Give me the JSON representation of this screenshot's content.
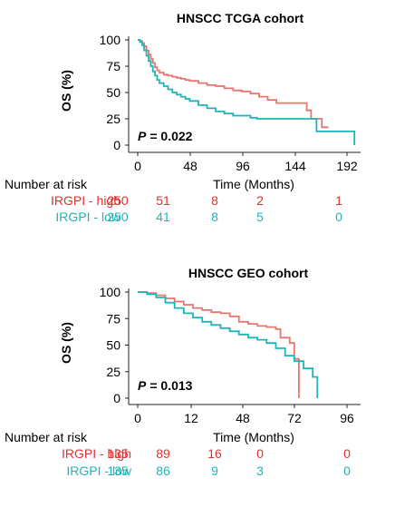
{
  "chart_data": [
    {
      "type": "line",
      "title": "HNSCC TCGA cohort",
      "ylabel": "OS (%)",
      "xlabel": "Time (Months)",
      "ylim": [
        0,
        100
      ],
      "xlim": [
        0,
        204
      ],
      "x_ticks": [
        "0",
        "48",
        "96",
        "144",
        "192"
      ],
      "y_ticks": [
        "100",
        "75",
        "50",
        "25",
        "0"
      ],
      "p_label": "P",
      "p_value": "= 0.022",
      "series": [
        {
          "name": "IRGPI - high",
          "color": "#e8766d",
          "x": [
            0,
            2,
            4,
            6,
            8,
            10,
            12,
            14,
            16,
            18,
            20,
            24,
            28,
            32,
            36,
            40,
            44,
            48,
            56,
            64,
            72,
            80,
            88,
            96,
            104,
            112,
            120,
            128,
            144,
            150,
            156,
            160,
            165,
            170,
            176
          ],
          "y": [
            100,
            99,
            97,
            94,
            90,
            86,
            82,
            78,
            74,
            71,
            69,
            67,
            66,
            65,
            64,
            63,
            62,
            61,
            59,
            57,
            56,
            54,
            52,
            51,
            49,
            46,
            43,
            40,
            40,
            40,
            33,
            25,
            25,
            17,
            17
          ]
        },
        {
          "name": "IRGPI - low",
          "color": "#1fb5b8",
          "x": [
            0,
            2,
            4,
            6,
            8,
            10,
            12,
            14,
            16,
            18,
            20,
            24,
            28,
            32,
            36,
            40,
            44,
            48,
            56,
            64,
            72,
            80,
            88,
            96,
            104,
            110,
            120,
            140,
            165,
            200,
            200
          ],
          "y": [
            100,
            98,
            95,
            90,
            85,
            80,
            75,
            70,
            66,
            62,
            59,
            56,
            53,
            50,
            48,
            46,
            44,
            42,
            38,
            35,
            32,
            30,
            28,
            28,
            26,
            25,
            25,
            25,
            13,
            8,
            0
          ]
        }
      ],
      "risk": {
        "heading": "Number at risk",
        "rows": [
          {
            "label": "IRGPI - high",
            "color": "#e0312f",
            "values": [
              "250",
              "51",
              "8",
              "2",
              "1"
            ]
          },
          {
            "label": "IRGPI - low",
            "color": "#1fb5b8",
            "values": [
              "250",
              "41",
              "8",
              "5",
              "0"
            ]
          }
        ]
      }
    },
    {
      "type": "line",
      "title": "HNSCC GEO cohort",
      "ylabel": "OS (%)",
      "xlabel": "Time (Months)",
      "ylim": [
        0,
        100
      ],
      "x_ticks": [
        "0",
        "12",
        "48",
        "72",
        "96"
      ],
      "y_ticks": [
        "100",
        "75",
        "50",
        "25",
        "0"
      ],
      "p_label": "P",
      "p_value": "= 0.013",
      "series": [
        {
          "name": "IRGPI - high",
          "color": "#e8766d",
          "x": [
            0,
            4,
            8,
            12,
            16,
            20,
            24,
            28,
            32,
            36,
            40,
            44,
            48,
            52,
            56,
            60,
            62,
            66,
            68,
            70,
            70
          ],
          "y": [
            100,
            99,
            97,
            94,
            91,
            88,
            85,
            83,
            81,
            80,
            77,
            72,
            70,
            68,
            67,
            65,
            57,
            52,
            37,
            30,
            0
          ]
        },
        {
          "name": "IRGPI - low",
          "color": "#1fb5b8",
          "x": [
            0,
            4,
            8,
            12,
            16,
            20,
            24,
            28,
            32,
            36,
            40,
            44,
            48,
            52,
            56,
            60,
            64,
            68,
            72,
            76,
            78,
            78
          ],
          "y": [
            100,
            98,
            95,
            90,
            85,
            80,
            76,
            72,
            69,
            66,
            63,
            60,
            57,
            55,
            52,
            47,
            40,
            35,
            28,
            20,
            20,
            0
          ]
        }
      ],
      "risk": {
        "heading": "Number at risk",
        "rows": [
          {
            "label": "IRGPI - high",
            "color": "#e0312f",
            "values": [
              "135",
              "89",
              "16",
              "0",
              "0"
            ]
          },
          {
            "label": "IRGPI - low",
            "color": "#1fb5b8",
            "values": [
              "135",
              "86",
              "9",
              "3",
              "0"
            ]
          }
        ]
      }
    }
  ]
}
